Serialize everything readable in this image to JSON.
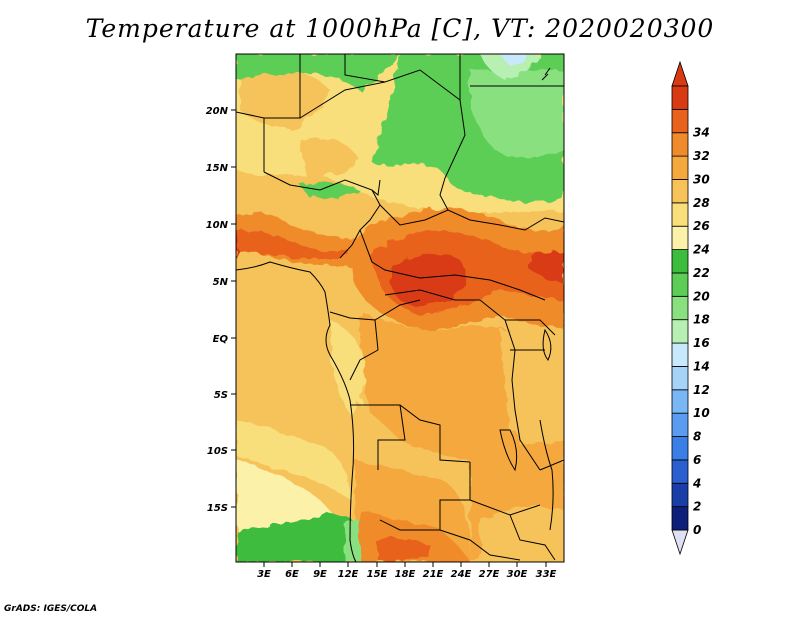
{
  "map": {
    "title": "Temperature at 1000hPa [C], VT: 2020020300",
    "credit": "GrADS: IGES/COLA",
    "lat_labels": [
      "20N",
      "15N",
      "10N",
      "5N",
      "EQ",
      "5S",
      "10S",
      "15S"
    ],
    "lon_labels": [
      "3E",
      "6E",
      "9E",
      "12E",
      "15E",
      "18E",
      "21E",
      "24E",
      "27E",
      "30E",
      "33E"
    ],
    "colorbar": {
      "levels": [
        "0",
        "2",
        "4",
        "6",
        "8",
        "10",
        "12",
        "14",
        "16",
        "18",
        "20",
        "22",
        "24",
        "26",
        "28",
        "30",
        "32",
        "34"
      ],
      "colors": [
        "#0c1f7a",
        "#1a3ea8",
        "#2b5fd0",
        "#3a7fe6",
        "#5a9cf0",
        "#7ab8f5",
        "#a6d4f8",
        "#c8e9fb",
        "#b8f0b4",
        "#88e07e",
        "#5ccd55",
        "#3ebc3e",
        "#fbf1a8",
        "#f8df7c",
        "#f6c25a",
        "#f4a83e",
        "#f08b2c",
        "#e8621d",
        "#d83a14"
      ],
      "lower_arrow": "#e0e0f5",
      "upper_arrow": "#d83a14"
    }
  }
}
